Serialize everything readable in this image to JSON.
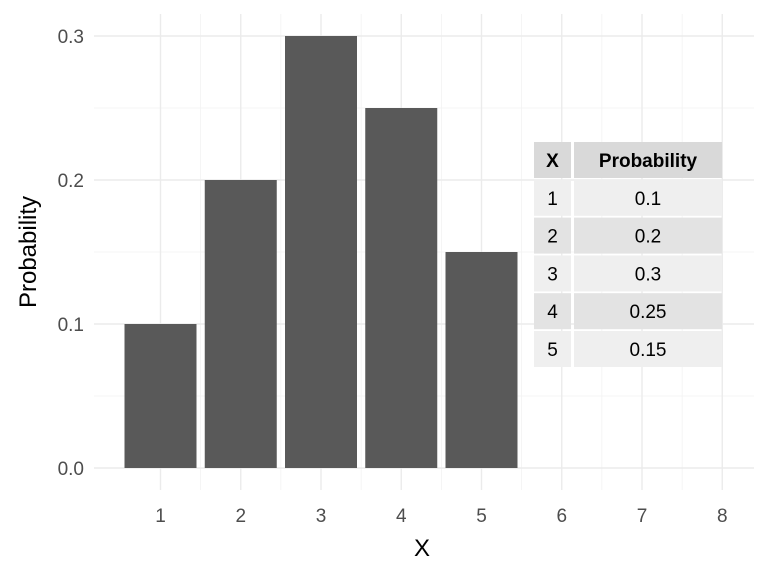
{
  "chart_data": {
    "type": "bar",
    "xlabel": "X",
    "ylabel": "Probability",
    "x_ticks": [
      "1",
      "2",
      "3",
      "4",
      "5",
      "6",
      "7",
      "8"
    ],
    "y_ticks": [
      "0.0",
      "0.1",
      "0.2",
      "0.3"
    ],
    "xlim": [
      0.5,
      8.5
    ],
    "ylim": [
      0,
      0.3
    ],
    "categories": [
      1,
      2,
      3,
      4,
      5
    ],
    "values": [
      0.1,
      0.2,
      0.3,
      0.25,
      0.15
    ],
    "bar_color": "#595959",
    "grid": true,
    "table": {
      "placement": "right-middle",
      "columns": [
        "X",
        "Probability"
      ],
      "rows": [
        [
          "1",
          "0.1"
        ],
        [
          "2",
          "0.2"
        ],
        [
          "3",
          "0.3"
        ],
        [
          "4",
          "0.25"
        ],
        [
          "5",
          "0.15"
        ]
      ],
      "header_color": "#d9d9d9",
      "row_colors": [
        "#efefef",
        "#e3e3e3"
      ]
    }
  }
}
